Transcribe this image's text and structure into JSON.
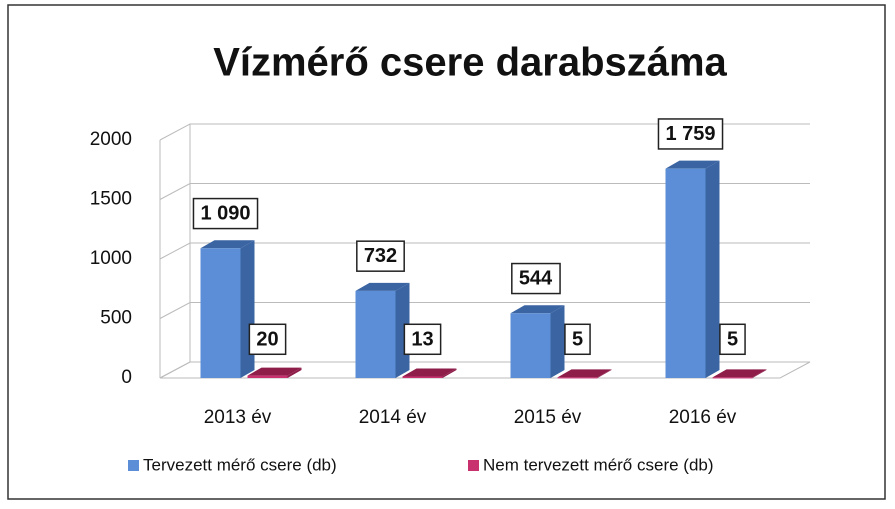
{
  "chart_data": {
    "type": "bar3d",
    "title": "Vízmérő csere darabszáma",
    "categories": [
      "2013 év",
      "2014 év",
      "2015 év",
      "2016 év"
    ],
    "series": [
      {
        "name": "Tervezett mérő csere (db)",
        "color": "#5b8ed6",
        "values": [
          1090,
          732,
          544,
          1759
        ],
        "value_labels": [
          "1 090",
          "732",
          "544",
          "1 759"
        ]
      },
      {
        "name": "Nem tervezett mérő csere (db)",
        "color": "#c8306e",
        "values": [
          20,
          13,
          5,
          5
        ],
        "value_labels": [
          "20",
          "13",
          "5",
          "5"
        ]
      }
    ],
    "ylim": [
      0,
      2000
    ],
    "yticks": [
      0,
      500,
      1000,
      1500,
      2000
    ],
    "grid": true,
    "legend": "bottom"
  }
}
